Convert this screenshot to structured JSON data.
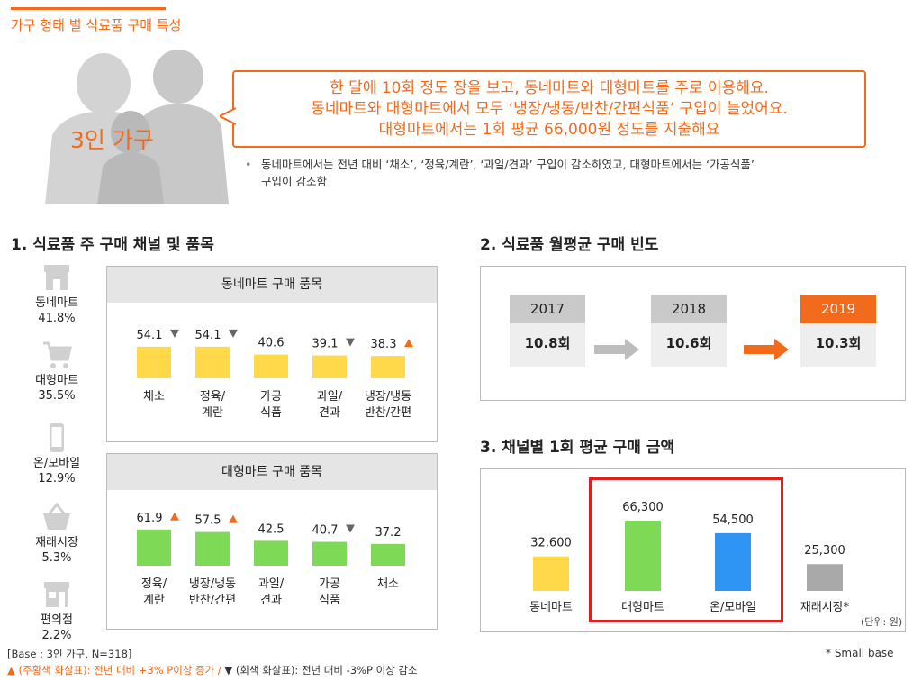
{
  "page": {
    "title": "가구 형태 별 식료품 구매 특성"
  },
  "hero": {
    "family_label": "3인 가구",
    "bubble_lines": [
      "한 달에 10회 정도 장을 보고, 동네마트와 대형마트를 주로 이용해요.",
      "동네마트와 대형마트에서 모두 ‘냉장/냉동/반찬/간편식품’ 구입이 늘었어요.",
      "대형마트에서는 1회 평균 66,000원 정도를 지출해요"
    ],
    "note_lines": [
      "동네마트에서는 전년 대비 ‘채소’, ‘정육/계란’, ‘과일/견과’ 구입이 감소하였고, 대형마트에서는 ‘가공식품’",
      "구입이 감소함"
    ]
  },
  "section1": {
    "title": "1. 식료품 주 구매 채널 및 품목",
    "channels": [
      {
        "icon": "store-icon",
        "name": "동네마트",
        "pct": "41.8%"
      },
      {
        "icon": "cart-icon",
        "name": "대형마트",
        "pct": "35.5%"
      },
      {
        "icon": "phone-icon",
        "name": "온/모바일",
        "pct": "12.9%"
      },
      {
        "icon": "basket-icon",
        "name": "재래시장",
        "pct": "5.3%"
      },
      {
        "icon": "convenience-store-icon",
        "name": "편의점",
        "pct": "2.2%"
      }
    ]
  },
  "section2": {
    "title": "2. 식료품 월평균 구매 빈도",
    "years": [
      {
        "year": "2017",
        "value": "10.8회"
      },
      {
        "year": "2018",
        "value": "10.6회"
      },
      {
        "year": "2019",
        "value": "10.3회"
      }
    ]
  },
  "section3": {
    "title": "3. 채널별 1회 평균 구매 금액",
    "unit": "(단위: 원)"
  },
  "footer": {
    "base": "[Base : 3인 가구, N=318]",
    "up_note": "▲ (주황색  화살표): 전년 대비 +3% P이상 증가 /",
    "down_note": " ▼ (회색 화살표): 전년 대비 -3%P 이상 감소",
    "small_base": "*  Small base"
  },
  "colors": {
    "accent": "#f26b1d",
    "yellow": "#ffd94a",
    "green": "#7ed957",
    "blue": "#2f95f5",
    "gray": "#a9a9a9"
  },
  "chart_data": [
    {
      "type": "bar",
      "title": "동네마트 구매 품목",
      "categories": [
        "채소",
        "정육/\n계란",
        "가공\n식품",
        "과일/\n견과",
        "냉장/냉동\n반찬/간편"
      ],
      "values": [
        54.1,
        54.1,
        40.6,
        39.1,
        38.3
      ],
      "labels": [
        "54.1",
        "54.1",
        "40.6",
        "39.1",
        "38.3"
      ],
      "trend": [
        "down",
        "down",
        "",
        "down",
        "up"
      ],
      "ylim": [
        0,
        80
      ]
    },
    {
      "type": "bar",
      "title": "대형마트 구매 품목",
      "categories": [
        "정육/\n계란",
        "냉장/냉동\n반찬/간편",
        "과일/\n견과",
        "가공\n식품",
        "채소"
      ],
      "values": [
        61.9,
        57.5,
        42.5,
        40.7,
        37.2
      ],
      "labels": [
        "61.9",
        "57.5",
        "42.5",
        "40.7",
        "37.2"
      ],
      "trend": [
        "up",
        "up",
        "",
        "down",
        ""
      ],
      "ylim": [
        0,
        80
      ]
    },
    {
      "type": "bar",
      "title": "채널별 1회 평균 구매 금액",
      "categories": [
        "동네마트",
        "대형마트",
        "온/모바일",
        "재래시장*"
      ],
      "values": [
        32600,
        66300,
        54500,
        25300
      ],
      "labels": [
        "32,600",
        "66,300",
        "54,500",
        "25,300"
      ],
      "highlight": [
        "대형마트",
        "온/모바일"
      ],
      "ylim": [
        0,
        80000
      ]
    }
  ]
}
